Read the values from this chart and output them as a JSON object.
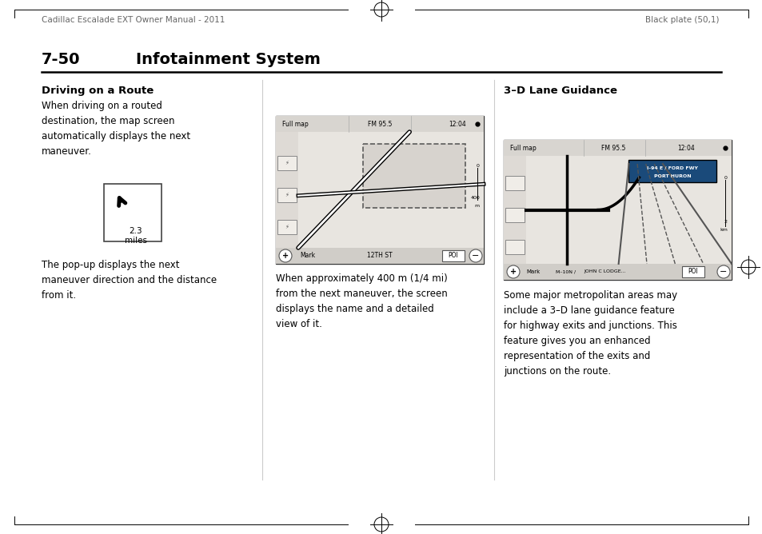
{
  "bg_color": "#ffffff",
  "header_left": "Cadillac Escalade EXT Owner Manual - 2011",
  "header_right": "Black plate (50,1)",
  "section_number": "7-50",
  "section_title": "Infotainment System",
  "col1_heading": "Driving on a Route",
  "col1_para1": "When driving on a routed\ndestination, the map screen\nautomatically displays the next\nmaneuver.",
  "col1_arrow_dist": "2.3\nmiles",
  "col1_para2": "The pop-up displays the next\nmaneuver direction and the distance\nfrom it.",
  "col2_para1": "When approximately 400 m (1/4 mi)\nfrom the next maneuver, the screen\ndisplays the name and a detailed\nview of it.",
  "col3_heading": "3–D Lane Guidance",
  "col3_para1": "Some major metropolitan areas may\ninclude a 3–D lane guidance feature\nfor highway exits and junctions. This\nfeature gives you an enhanced\nrepresentation of the exits and\njunctions on the route."
}
